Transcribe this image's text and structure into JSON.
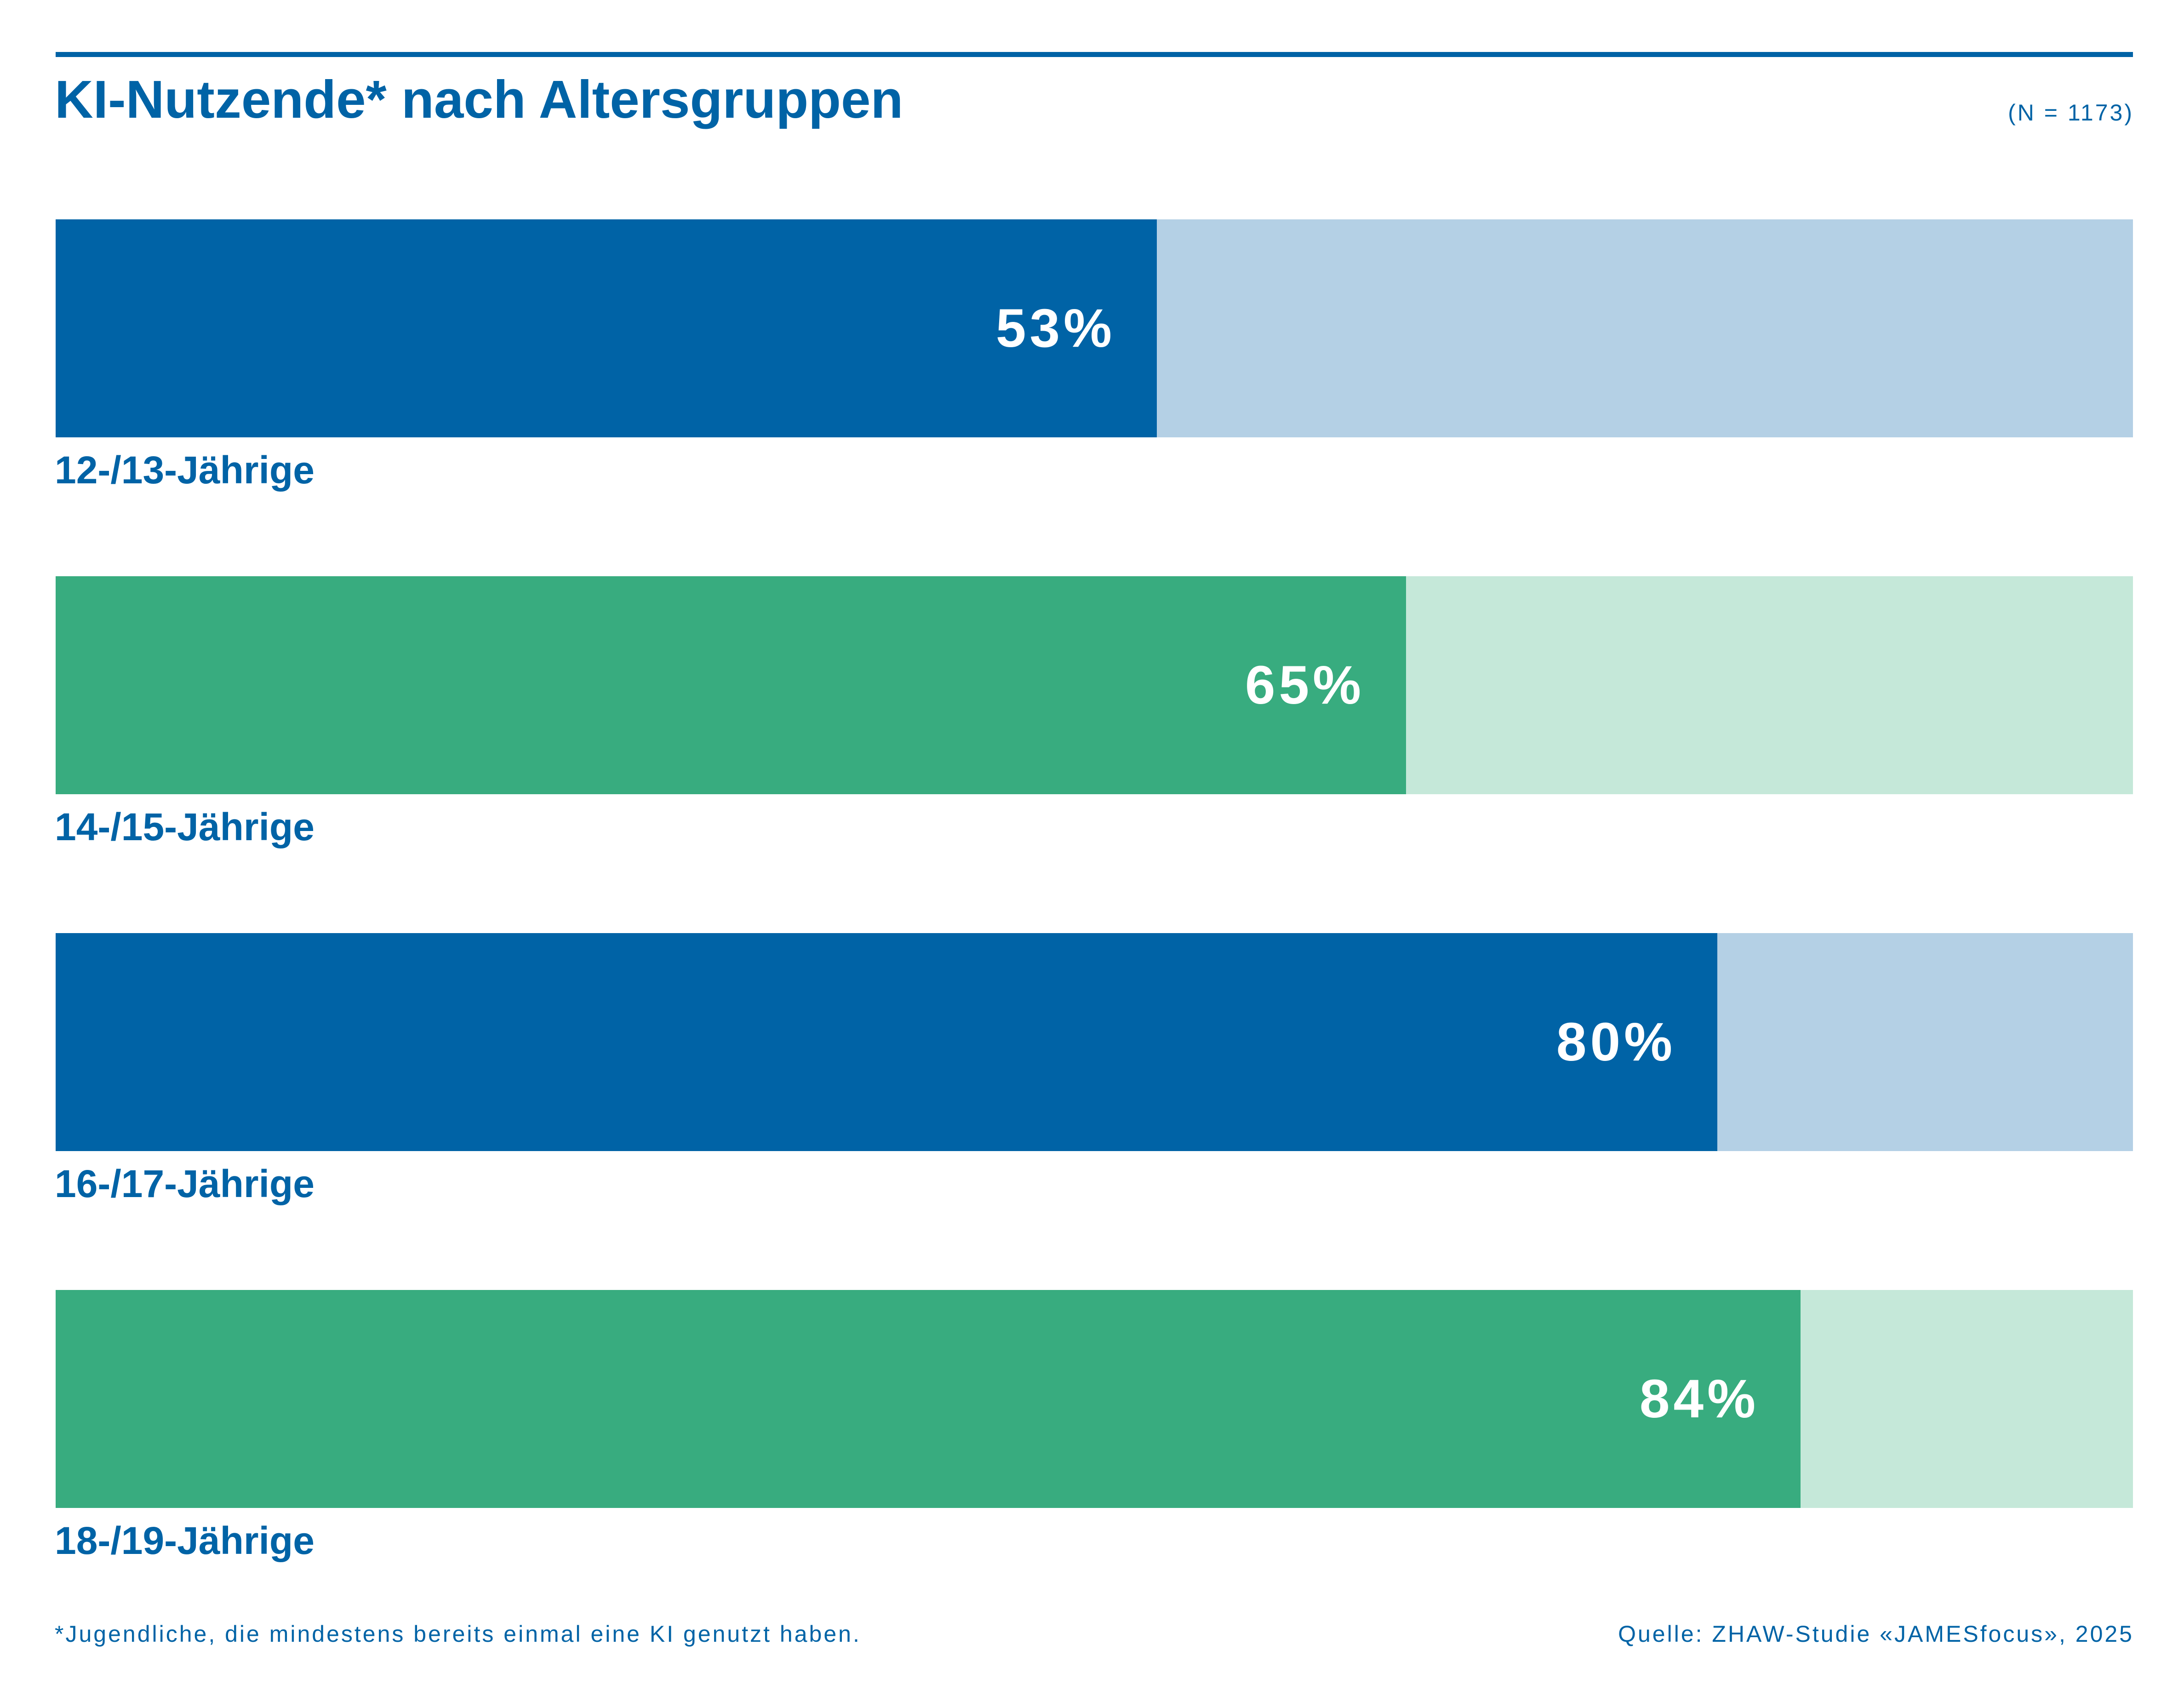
{
  "chart_data": {
    "type": "bar",
    "orientation": "horizontal",
    "stacked_to_100": true,
    "title": "KI-Nutzende* nach Altersgruppen",
    "sample_size": "(N = 1173)",
    "categories": [
      "12-/13-Jährige",
      "14-/15-Jährige",
      "16-/17-Jährige",
      "18-/19-Jährige"
    ],
    "values": [
      53,
      65,
      80,
      84
    ],
    "value_labels": [
      "53%",
      "65%",
      "80%",
      "84%"
    ],
    "xlim": [
      0,
      100
    ],
    "grid": false,
    "legend": "none",
    "colors": {
      "blue": "#0063a6",
      "blue_light": "#b4d0e5",
      "green": "#38ac7f",
      "green_light": "#c5e8d9"
    },
    "bar_colors": [
      "blue",
      "green",
      "blue",
      "green"
    ],
    "footnote": "*Jugendliche, die mindestens bereits einmal eine KI genutzt haben.",
    "source": "Quelle: ZHAW-Studie «JAMESfocus», 2025"
  }
}
